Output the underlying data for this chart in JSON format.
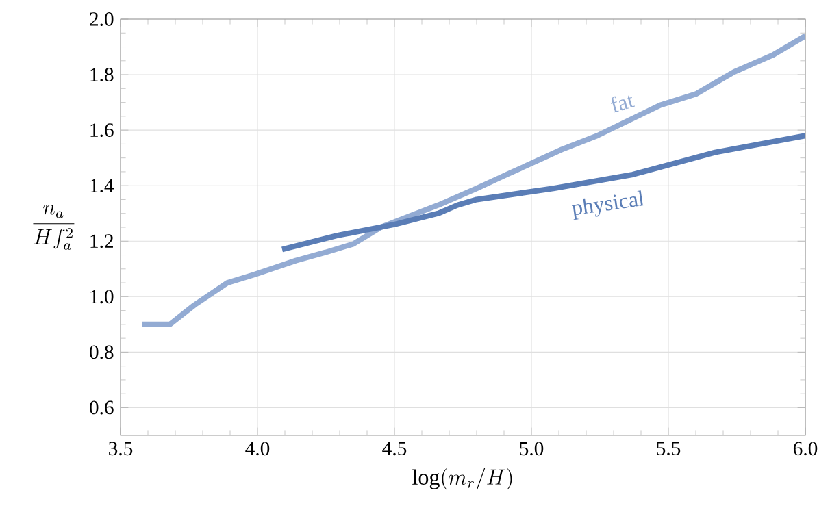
{
  "chart_data": {
    "type": "line",
    "xlabel": "\\log(m_r/H)",
    "ylabel": "\\frac{n_a}{H f_a^2}",
    "xlim": [
      3.5,
      6.0
    ],
    "ylim": [
      0.5,
      2.0
    ],
    "xticks": [
      {
        "value": 3.5,
        "label": "3.5"
      },
      {
        "value": 4.0,
        "label": "4.0"
      },
      {
        "value": 4.5,
        "label": "4.5"
      },
      {
        "value": 5.0,
        "label": "5.0"
      },
      {
        "value": 5.5,
        "label": "5.5"
      },
      {
        "value": 6.0,
        "label": "6.0"
      }
    ],
    "yticks": [
      {
        "value": 0.6,
        "label": "0.6"
      },
      {
        "value": 0.8,
        "label": "0.8"
      },
      {
        "value": 1.0,
        "label": "1.0"
      },
      {
        "value": 1.2,
        "label": "1.2"
      },
      {
        "value": 1.4,
        "label": "1.4"
      },
      {
        "value": 1.6,
        "label": "1.6"
      },
      {
        "value": 1.8,
        "label": "1.8"
      },
      {
        "value": 2.0,
        "label": "2.0"
      }
    ],
    "grid": true,
    "marker": "none",
    "line_style": "solid",
    "series": [
      {
        "name": "fat",
        "color": "#93abd3",
        "x": [
          3.58,
          3.68,
          3.77,
          3.89,
          3.99,
          4.14,
          4.25,
          4.35,
          4.45,
          4.66,
          4.8,
          4.91,
          5.11,
          5.24,
          5.47,
          5.6,
          5.74,
          5.88,
          6.0
        ],
        "values": [
          0.9,
          0.9,
          0.97,
          1.05,
          1.08,
          1.13,
          1.16,
          1.19,
          1.25,
          1.33,
          1.39,
          1.44,
          1.53,
          1.58,
          1.69,
          1.73,
          1.81,
          1.87,
          1.94
        ]
      },
      {
        "name": "physical",
        "color": "#5a7db6",
        "x": [
          4.09,
          4.29,
          4.5,
          4.66,
          4.73,
          4.8,
          5.08,
          5.37,
          5.67,
          6.0
        ],
        "values": [
          1.17,
          1.22,
          1.26,
          1.3,
          1.33,
          1.35,
          1.39,
          1.44,
          1.52,
          1.58
        ]
      }
    ]
  }
}
